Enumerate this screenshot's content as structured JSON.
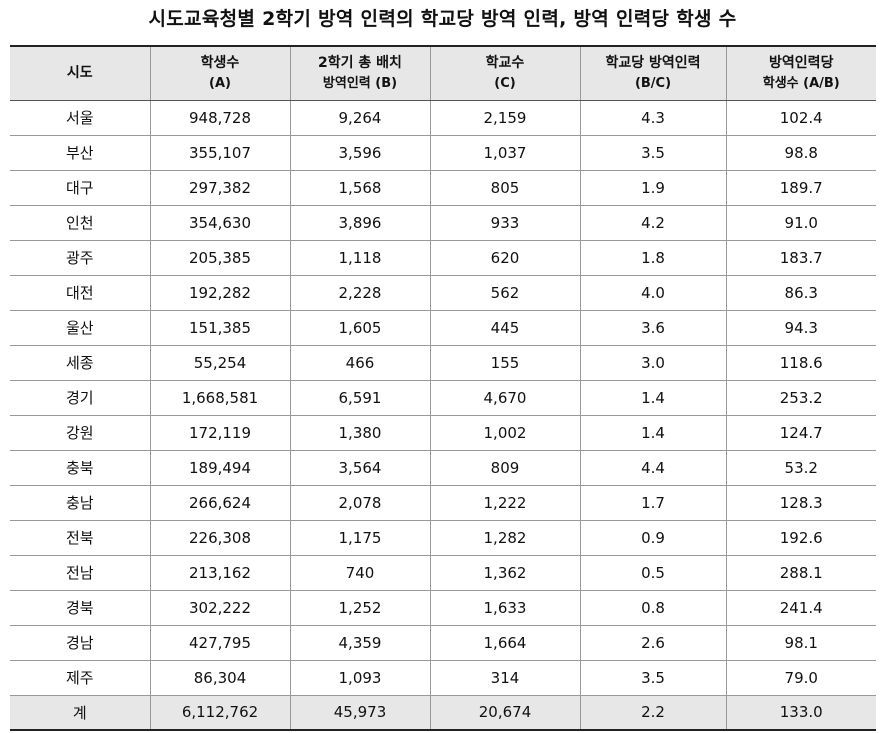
{
  "title": "시도교육청별 2학기 방역 인력의 학교당 방역 인력, 방역 인력당 학생 수",
  "headers": [
    {
      "line1": "시도",
      "line2": ""
    },
    {
      "line1": "학생수",
      "line2": "(A)"
    },
    {
      "line1": "2학기 총 배치",
      "line2": "방역인력 (B)"
    },
    {
      "line1": "학교수",
      "line2": "(C)"
    },
    {
      "line1": "학교당 방역인력",
      "line2": "(B/C)"
    },
    {
      "line1": "방역인력당",
      "line2": "학생수 (A/B)"
    }
  ],
  "rows": [
    [
      "서울",
      "948,728",
      "9,264",
      "2,159",
      "4.3",
      "102.4"
    ],
    [
      "부산",
      "355,107",
      "3,596",
      "1,037",
      "3.5",
      "98.8"
    ],
    [
      "대구",
      "297,382",
      "1,568",
      "805",
      "1.9",
      "189.7"
    ],
    [
      "인천",
      "354,630",
      "3,896",
      "933",
      "4.2",
      "91.0"
    ],
    [
      "광주",
      "205,385",
      "1,118",
      "620",
      "1.8",
      "183.7"
    ],
    [
      "대전",
      "192,282",
      "2,228",
      "562",
      "4.0",
      "86.3"
    ],
    [
      "울산",
      "151,385",
      "1,605",
      "445",
      "3.6",
      "94.3"
    ],
    [
      "세종",
      "55,254",
      "466",
      "155",
      "3.0",
      "118.6"
    ],
    [
      "경기",
      "1,668,581",
      "6,591",
      "4,670",
      "1.4",
      "253.2"
    ],
    [
      "강원",
      "172,119",
      "1,380",
      "1,002",
      "1.4",
      "124.7"
    ],
    [
      "충북",
      "189,494",
      "3,564",
      "809",
      "4.4",
      "53.2"
    ],
    [
      "충남",
      "266,624",
      "2,078",
      "1,222",
      "1.7",
      "128.3"
    ],
    [
      "전북",
      "226,308",
      "1,175",
      "1,282",
      "0.9",
      "192.6"
    ],
    [
      "전남",
      "213,162",
      "740",
      "1,362",
      "0.5",
      "288.1"
    ],
    [
      "경북",
      "302,222",
      "1,252",
      "1,633",
      "0.8",
      "241.4"
    ],
    [
      "경남",
      "427,795",
      "4,359",
      "1,664",
      "2.6",
      "98.1"
    ],
    [
      "제주",
      "86,304",
      "1,093",
      "314",
      "3.5",
      "79.0"
    ]
  ],
  "total": [
    "계",
    "6,112,762",
    "45,973",
    "20,674",
    "2.2",
    "133.0"
  ],
  "colors": {
    "header_bg": "#e7e7e7",
    "total_bg": "#e7e7e7",
    "grid": "#999999",
    "rule": "#222222"
  }
}
